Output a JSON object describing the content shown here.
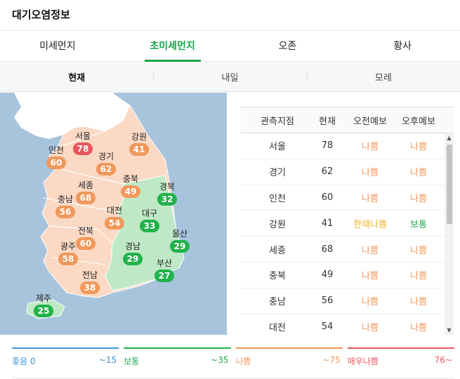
{
  "title": "대기오염정보",
  "tabs": [
    {
      "label": "미세먼지",
      "active": false
    },
    {
      "label": "초미세먼지",
      "active": true
    },
    {
      "label": "오존",
      "active": false
    },
    {
      "label": "황사",
      "active": false
    }
  ],
  "subtabs": [
    {
      "label": "현재",
      "active": true
    },
    {
      "label": "내일",
      "active": false
    },
    {
      "label": "모레",
      "active": false
    }
  ],
  "map": {
    "regions": [
      {
        "name": "서울",
        "value": "78",
        "grade": "verybad"
      },
      {
        "name": "인천",
        "value": "60",
        "grade": "bad"
      },
      {
        "name": "경기",
        "value": "62",
        "grade": "bad"
      },
      {
        "name": "강원",
        "value": "41",
        "grade": "bad"
      },
      {
        "name": "충북",
        "value": "49",
        "grade": "bad"
      },
      {
        "name": "세종",
        "value": "68",
        "grade": "bad"
      },
      {
        "name": "충남",
        "value": "56",
        "grade": "bad"
      },
      {
        "name": "대전",
        "value": "54",
        "grade": "bad"
      },
      {
        "name": "경북",
        "value": "32",
        "grade": "normal"
      },
      {
        "name": "대구",
        "value": "33",
        "grade": "normal"
      },
      {
        "name": "전북",
        "value": "60",
        "grade": "bad"
      },
      {
        "name": "울산",
        "value": "29",
        "grade": "normal"
      },
      {
        "name": "광주",
        "value": "58",
        "grade": "bad"
      },
      {
        "name": "경남",
        "value": "29",
        "grade": "normal"
      },
      {
        "name": "부산",
        "value": "27",
        "grade": "normal"
      },
      {
        "name": "전남",
        "value": "38",
        "grade": "bad"
      },
      {
        "name": "제주",
        "value": "25",
        "grade": "normal"
      }
    ]
  },
  "table": {
    "headers": [
      "관측지점",
      "현재",
      "오전예보",
      "오후예보"
    ],
    "rows": [
      {
        "site": "서울",
        "now": "78",
        "am": "나쁨",
        "am_grade": "bad",
        "pm": "나쁨",
        "pm_grade": "bad"
      },
      {
        "site": "경기",
        "now": "62",
        "am": "나쁨",
        "am_grade": "bad",
        "pm": "나쁨",
        "pm_grade": "bad"
      },
      {
        "site": "인천",
        "now": "60",
        "am": "나쁨",
        "am_grade": "bad",
        "pm": "나쁨",
        "pm_grade": "bad"
      },
      {
        "site": "강원",
        "now": "41",
        "am": "한때나쁨",
        "am_grade": "sometimes",
        "pm": "보통",
        "pm_grade": "normal"
      },
      {
        "site": "세종",
        "now": "68",
        "am": "나쁨",
        "am_grade": "bad",
        "pm": "나쁨",
        "pm_grade": "bad"
      },
      {
        "site": "충북",
        "now": "49",
        "am": "나쁨",
        "am_grade": "bad",
        "pm": "나쁨",
        "pm_grade": "bad"
      },
      {
        "site": "충남",
        "now": "56",
        "am": "나쁨",
        "am_grade": "bad",
        "pm": "나쁨",
        "pm_grade": "bad"
      },
      {
        "site": "대전",
        "now": "54",
        "am": "나쁨",
        "am_grade": "bad",
        "pm": "나쁨",
        "pm_grade": "bad"
      }
    ]
  },
  "legend": [
    {
      "label": "좋음 0",
      "range": "~15",
      "grade": "good"
    },
    {
      "label": "보통",
      "range": "~35",
      "grade": "normal"
    },
    {
      "label": "나쁨",
      "range": "~75",
      "grade": "bad"
    },
    {
      "label": "매우나쁨",
      "range": "76~",
      "grade": "verybad"
    }
  ],
  "colors": {
    "accent": "#19a44a",
    "good": "#3d95d6",
    "normal": "#22b24c",
    "bad": "#f0985b",
    "verybad": "#e8575d",
    "sometimes": "#f0b52b",
    "sea": "#a8c4dd",
    "land_bad": "#fbd9c4",
    "land_normal": "#bfe9c6",
    "north": "#ffffff"
  }
}
